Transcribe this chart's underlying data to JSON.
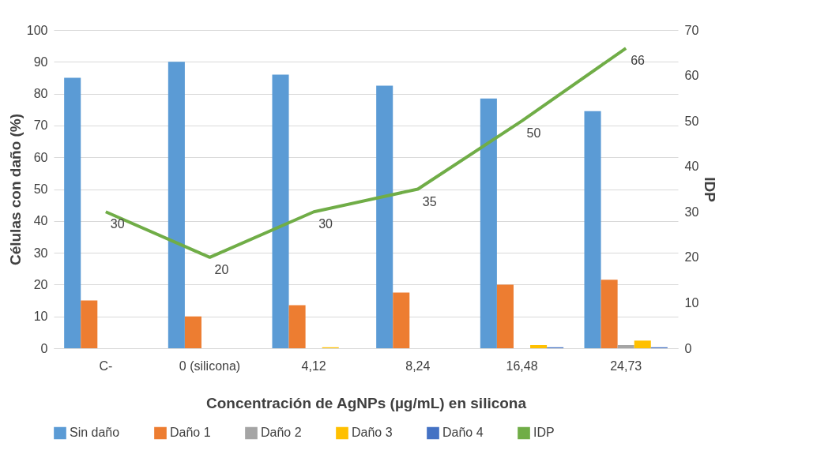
{
  "chart_data": {
    "type": "bar",
    "xlabel": "Concentración de AgNPs (µg/mL) en silicona",
    "ylabel": "Células con daño (%)",
    "y2label": "IDP",
    "categories": [
      "C-",
      "0 (silicona)",
      "4,12",
      "8,24",
      "16,48",
      "24,73"
    ],
    "series": [
      {
        "name": "Sin daño",
        "color": "#5b9bd5",
        "values": [
          85,
          90,
          86,
          82.5,
          78.5,
          74.5
        ]
      },
      {
        "name": "Daño 1",
        "color": "#ed7d31",
        "values": [
          15,
          10,
          13.5,
          17.5,
          20,
          21.5
        ]
      },
      {
        "name": "Daño 2",
        "color": "#a5a5a5",
        "values": [
          0,
          0,
          0,
          0,
          0,
          1
        ]
      },
      {
        "name": "Daño 3",
        "color": "#ffc000",
        "values": [
          0,
          0,
          0.3,
          0,
          1,
          2.4
        ]
      },
      {
        "name": "Daño 4",
        "color": "#4472c4",
        "values": [
          0,
          0,
          0,
          0,
          0.3,
          0.3
        ]
      },
      {
        "name": "IDP",
        "type": "line",
        "axis": "y2",
        "color": "#70ad47",
        "values": [
          30,
          20,
          30,
          35,
          50,
          66
        ],
        "value_labels": [
          "30",
          "20",
          "30",
          "35",
          "50",
          "66"
        ]
      }
    ],
    "ylim": [
      0,
      100
    ],
    "yticks": [
      0,
      10,
      20,
      30,
      40,
      50,
      60,
      70,
      80,
      90,
      100
    ],
    "y2lim": [
      0,
      70
    ],
    "y2ticks": [
      0,
      10,
      20,
      30,
      40,
      50,
      60,
      70
    ],
    "grid": "y",
    "legend": "bottom",
    "marker": "none",
    "line_style": "solid"
  }
}
